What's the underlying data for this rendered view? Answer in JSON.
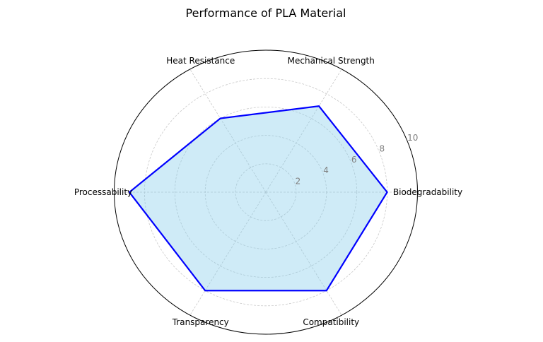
{
  "chart_data": {
    "type": "radar",
    "title": "Performance of PLA Material",
    "categories": [
      "Biodegradability",
      "Mechanical Strength",
      "Heat Resistance",
      "Processability",
      "Transparency",
      "Compatibility"
    ],
    "values": [
      8,
      7,
      6,
      9,
      8,
      8
    ],
    "rlim": [
      0,
      10
    ],
    "rticks": [
      2,
      4,
      6,
      8,
      10
    ],
    "rtick_labels": [
      "2",
      "4",
      "6",
      "8",
      "10"
    ],
    "grid": true,
    "colors": {
      "line": "#0000ff",
      "fill": "#87ceeb",
      "grid": "#c8c8c8",
      "tick": "#808080"
    }
  }
}
